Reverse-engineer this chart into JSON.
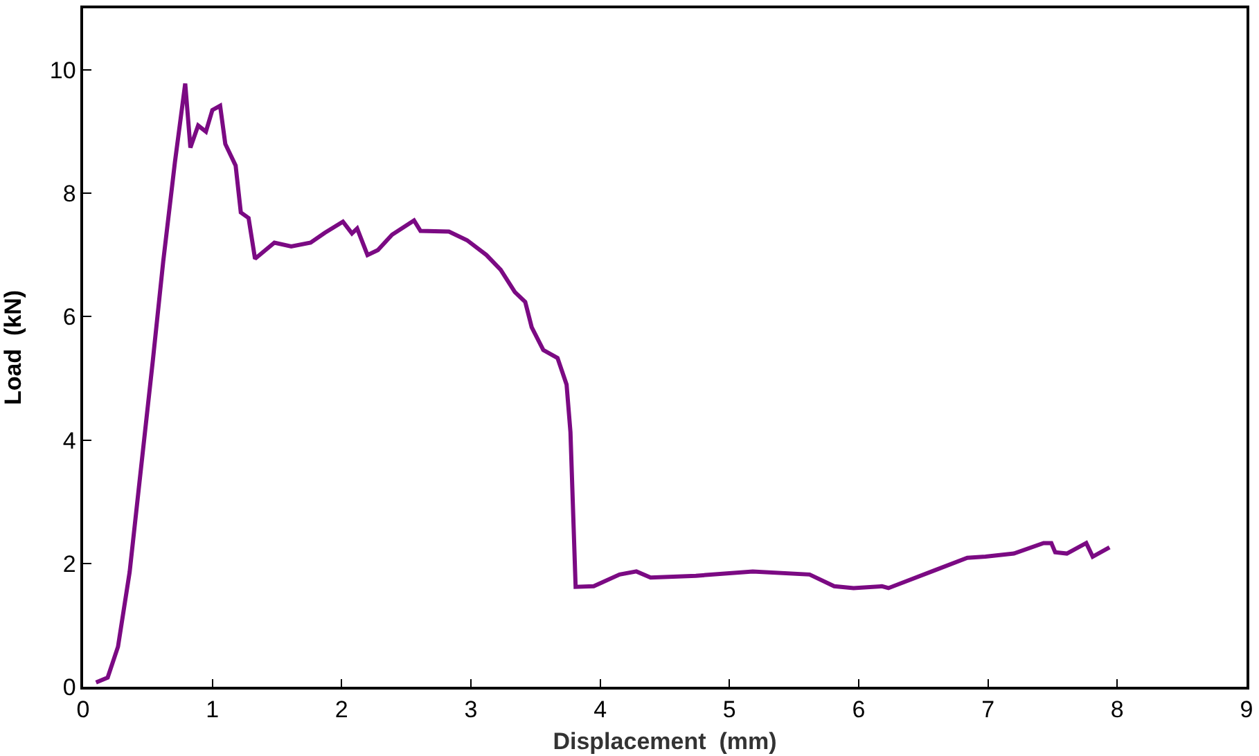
{
  "chart_data": {
    "type": "line",
    "xlabel": "Displacement  (mm)",
    "ylabel": "Load  (kN)",
    "xlim": [
      0,
      9
    ],
    "ylim": [
      0,
      11
    ],
    "xticks": [
      0,
      1,
      2,
      3,
      4,
      5,
      6,
      7,
      8,
      9
    ],
    "yticks": [
      0,
      2,
      4,
      6,
      8,
      10
    ],
    "marker": "none",
    "line_style": "solid",
    "series": [
      {
        "color": "#7b0a83",
        "x": [
          0.1,
          0.19,
          0.27,
          0.36,
          0.43,
          0.54,
          0.62,
          0.71,
          0.79,
          0.83,
          0.89,
          0.95,
          1.0,
          1.06,
          1.1,
          1.18,
          1.22,
          1.28,
          1.33,
          1.48,
          1.61,
          1.76,
          1.87,
          2.01,
          2.08,
          2.12,
          2.2,
          2.28,
          2.39,
          2.56,
          2.61,
          2.83,
          2.97,
          3.12,
          3.23,
          3.34,
          3.42,
          3.47,
          3.56,
          3.67,
          3.74,
          3.77,
          3.81,
          3.95,
          4.15,
          4.28,
          4.39,
          4.74,
          5.18,
          5.62,
          5.81,
          5.96,
          6.18,
          6.23,
          6.59,
          6.84,
          6.98,
          7.2,
          7.43,
          7.49,
          7.52,
          7.61,
          7.76,
          7.81,
          7.94
        ],
        "values": [
          0.07,
          0.15,
          0.65,
          1.86,
          3.2,
          5.3,
          6.9,
          8.5,
          9.78,
          8.74,
          9.1,
          9.0,
          9.35,
          9.42,
          8.8,
          8.45,
          7.69,
          7.6,
          6.94,
          7.2,
          7.14,
          7.2,
          7.36,
          7.54,
          7.35,
          7.43,
          7.0,
          7.08,
          7.33,
          7.56,
          7.39,
          7.38,
          7.24,
          7.0,
          6.76,
          6.4,
          6.24,
          5.83,
          5.46,
          5.33,
          4.9,
          4.13,
          1.62,
          1.63,
          1.82,
          1.87,
          1.77,
          1.8,
          1.87,
          1.82,
          1.63,
          1.6,
          1.63,
          1.6,
          1.89,
          2.09,
          2.11,
          2.16,
          2.33,
          2.33,
          2.18,
          2.16,
          2.33,
          2.11,
          2.26
        ]
      }
    ]
  }
}
